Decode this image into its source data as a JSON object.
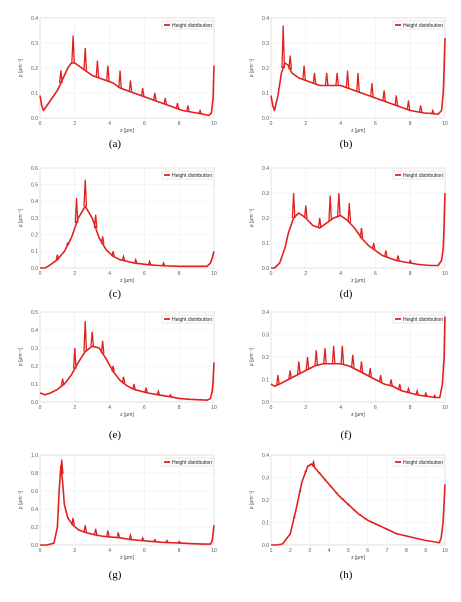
{
  "figure": {
    "panels": [
      {
        "caption": "(a)"
      },
      {
        "caption": "(b)"
      },
      {
        "caption": "(c)"
      },
      {
        "caption": "(d)"
      },
      {
        "caption": "(e)"
      },
      {
        "caption": "(f)"
      },
      {
        "caption": "(g)"
      },
      {
        "caption": "(h)"
      }
    ]
  },
  "chart_data": [
    {
      "type": "line",
      "xlabel": "z [μm]",
      "ylabel": "ρ [μm⁻¹]",
      "xlim": [
        0,
        10
      ],
      "ylim": [
        0,
        0.4
      ],
      "xticks": [
        0,
        2,
        4,
        6,
        8,
        10
      ],
      "yticks": [
        0.0,
        0.1,
        0.2,
        0.3,
        0.4
      ],
      "yticklabels": [
        "0.0",
        "0.1",
        "0.2",
        "0.3",
        "0.4"
      ],
      "grid": true,
      "legend_position": "top-right",
      "color": "#e02020",
      "series": [
        {
          "name": "Height distribution",
          "x": [
            0.0,
            0.1,
            0.2,
            0.4,
            0.6,
            0.8,
            1.0,
            1.2,
            1.4,
            1.6,
            1.8,
            2.0,
            2.2,
            2.6,
            3.0,
            3.4,
            3.8,
            4.2,
            4.6,
            5.0,
            5.4,
            5.8,
            6.2,
            6.6,
            7.0,
            7.4,
            7.8,
            8.2,
            8.6,
            9.0,
            9.4,
            9.7,
            9.85,
            9.95,
            10.0
          ],
          "y": [
            0.09,
            0.05,
            0.03,
            0.05,
            0.07,
            0.09,
            0.11,
            0.14,
            0.17,
            0.2,
            0.22,
            0.22,
            0.21,
            0.19,
            0.17,
            0.16,
            0.15,
            0.14,
            0.12,
            0.11,
            0.1,
            0.09,
            0.08,
            0.07,
            0.06,
            0.05,
            0.04,
            0.03,
            0.025,
            0.02,
            0.015,
            0.01,
            0.02,
            0.08,
            0.21
          ]
        }
      ],
      "peaks": [
        [
          1.2,
          0.19
        ],
        [
          1.9,
          0.33
        ],
        [
          2.6,
          0.28
        ],
        [
          3.3,
          0.23
        ],
        [
          3.9,
          0.21
        ],
        [
          4.6,
          0.19
        ],
        [
          5.2,
          0.15
        ],
        [
          5.9,
          0.12
        ],
        [
          6.6,
          0.1
        ],
        [
          7.2,
          0.08
        ],
        [
          7.9,
          0.06
        ],
        [
          8.5,
          0.05
        ],
        [
          9.2,
          0.03
        ]
      ]
    },
    {
      "type": "line",
      "xlabel": "z [μm]",
      "ylabel": "ρ [μm⁻¹]",
      "xlim": [
        0,
        10
      ],
      "ylim": [
        0,
        0.4
      ],
      "xticks": [
        0,
        2,
        4,
        6,
        8,
        10
      ],
      "yticks": [
        0.0,
        0.1,
        0.2,
        0.3,
        0.4
      ],
      "yticklabels": [
        "0.0",
        "0.1",
        "0.2",
        "0.3",
        "0.4"
      ],
      "grid": true,
      "legend_position": "top-right",
      "color": "#e02020",
      "series": [
        {
          "name": "Height distribution",
          "x": [
            0.0,
            0.1,
            0.2,
            0.4,
            0.6,
            0.8,
            1.0,
            1.2,
            1.6,
            2.0,
            2.4,
            2.8,
            3.2,
            3.6,
            4.0,
            4.4,
            4.8,
            5.2,
            5.6,
            6.0,
            6.4,
            6.8,
            7.2,
            7.6,
            8.0,
            8.4,
            8.8,
            9.2,
            9.6,
            9.8,
            9.9,
            9.95,
            10.0
          ],
          "y": [
            0.09,
            0.05,
            0.03,
            0.09,
            0.18,
            0.22,
            0.21,
            0.18,
            0.16,
            0.15,
            0.14,
            0.13,
            0.13,
            0.13,
            0.13,
            0.12,
            0.11,
            0.1,
            0.09,
            0.08,
            0.07,
            0.06,
            0.05,
            0.04,
            0.03,
            0.025,
            0.02,
            0.018,
            0.015,
            0.03,
            0.1,
            0.2,
            0.32
          ]
        }
      ],
      "peaks": [
        [
          0.7,
          0.37
        ],
        [
          1.1,
          0.25
        ],
        [
          1.9,
          0.21
        ],
        [
          2.5,
          0.18
        ],
        [
          3.2,
          0.18
        ],
        [
          3.8,
          0.18
        ],
        [
          4.4,
          0.19
        ],
        [
          5.0,
          0.18
        ],
        [
          5.8,
          0.14
        ],
        [
          6.5,
          0.11
        ],
        [
          7.2,
          0.09
        ],
        [
          7.9,
          0.07
        ],
        [
          8.6,
          0.05
        ],
        [
          9.3,
          0.03
        ]
      ]
    },
    {
      "type": "line",
      "xlabel": "z [μm]",
      "ylabel": "ρ [μm⁻¹]",
      "xlim": [
        0,
        10
      ],
      "ylim": [
        0,
        0.6
      ],
      "xticks": [
        0,
        2,
        4,
        6,
        8,
        10
      ],
      "yticks": [
        0.0,
        0.1,
        0.2,
        0.3,
        0.4,
        0.5,
        0.6
      ],
      "yticklabels": [
        "0.0",
        "0.1",
        "0.2",
        "0.3",
        "0.4",
        "0.5",
        "0.6"
      ],
      "grid": true,
      "legend_position": "top-right",
      "color": "#e02020",
      "series": [
        {
          "name": "Height distribution",
          "x": [
            0.0,
            0.3,
            0.6,
            1.0,
            1.4,
            1.8,
            2.2,
            2.6,
            3.0,
            3.4,
            3.8,
            4.2,
            4.6,
            5.0,
            5.4,
            5.8,
            6.2,
            6.8,
            7.4,
            8.0,
            8.6,
            9.2,
            9.6,
            9.8,
            9.9,
            10.0
          ],
          "y": [
            0.0,
            0.0,
            0.02,
            0.05,
            0.1,
            0.18,
            0.3,
            0.37,
            0.3,
            0.18,
            0.11,
            0.07,
            0.05,
            0.04,
            0.03,
            0.025,
            0.02,
            0.015,
            0.012,
            0.01,
            0.01,
            0.01,
            0.01,
            0.03,
            0.06,
            0.1
          ]
        }
      ],
      "peaks": [
        [
          1.0,
          0.08
        ],
        [
          1.6,
          0.15
        ],
        [
          2.1,
          0.42
        ],
        [
          2.6,
          0.53
        ],
        [
          3.2,
          0.32
        ],
        [
          3.6,
          0.19
        ],
        [
          4.2,
          0.1
        ],
        [
          4.8,
          0.07
        ],
        [
          5.5,
          0.05
        ],
        [
          6.3,
          0.04
        ],
        [
          7.1,
          0.03
        ]
      ]
    },
    {
      "type": "line",
      "xlabel": "z [μm]",
      "ylabel": "ρ [μm⁻¹]",
      "xlim": [
        0,
        10
      ],
      "ylim": [
        0,
        0.4
      ],
      "xticks": [
        0,
        2,
        4,
        6,
        8,
        10
      ],
      "yticks": [
        0.0,
        0.1,
        0.2,
        0.3,
        0.4
      ],
      "yticklabels": [
        "0.0",
        "0.1",
        "0.2",
        "0.3",
        "0.4"
      ],
      "grid": true,
      "legend_position": "top-right",
      "color": "#e02020",
      "series": [
        {
          "name": "Height distribution",
          "x": [
            0.0,
            0.2,
            0.5,
            0.8,
            1.0,
            1.3,
            1.6,
            2.0,
            2.4,
            2.8,
            3.2,
            3.6,
            4.0,
            4.4,
            4.8,
            5.2,
            5.6,
            6.0,
            6.4,
            6.8,
            7.2,
            7.6,
            8.0,
            8.4,
            8.8,
            9.2,
            9.6,
            9.8,
            9.9,
            9.95,
            10.0
          ],
          "y": [
            0.0,
            0.0,
            0.02,
            0.08,
            0.14,
            0.2,
            0.22,
            0.2,
            0.17,
            0.16,
            0.18,
            0.2,
            0.21,
            0.19,
            0.16,
            0.12,
            0.09,
            0.07,
            0.05,
            0.04,
            0.03,
            0.025,
            0.02,
            0.015,
            0.012,
            0.01,
            0.01,
            0.03,
            0.08,
            0.18,
            0.3
          ]
        }
      ],
      "peaks": [
        [
          1.3,
          0.3
        ],
        [
          2.0,
          0.25
        ],
        [
          2.8,
          0.2
        ],
        [
          3.4,
          0.29
        ],
        [
          3.9,
          0.3
        ],
        [
          4.5,
          0.26
        ],
        [
          5.2,
          0.16
        ],
        [
          5.9,
          0.1
        ],
        [
          6.6,
          0.07
        ],
        [
          7.3,
          0.05
        ],
        [
          8.0,
          0.03
        ]
      ]
    },
    {
      "type": "line",
      "xlabel": "z [μm]",
      "ylabel": "ρ [μm⁻¹]",
      "xlim": [
        0,
        10
      ],
      "ylim": [
        0,
        0.5
      ],
      "xticks": [
        0,
        2,
        4,
        6,
        8,
        10
      ],
      "yticks": [
        0.0,
        0.1,
        0.2,
        0.3,
        0.4,
        0.5
      ],
      "yticklabels": [
        "0.0",
        "0.1",
        "0.2",
        "0.3",
        "0.4",
        "0.5"
      ],
      "grid": true,
      "legend_position": "top-right",
      "color": "#e02020",
      "series": [
        {
          "name": "Height distribution",
          "x": [
            0.0,
            0.3,
            0.6,
            1.0,
            1.4,
            1.8,
            2.2,
            2.6,
            3.0,
            3.4,
            3.8,
            4.2,
            4.6,
            5.0,
            5.4,
            5.8,
            6.2,
            6.8,
            7.4,
            8.0,
            8.6,
            9.2,
            9.6,
            9.8,
            9.9,
            9.95,
            10.0
          ],
          "y": [
            0.05,
            0.04,
            0.05,
            0.07,
            0.1,
            0.15,
            0.22,
            0.28,
            0.31,
            0.3,
            0.24,
            0.17,
            0.12,
            0.09,
            0.07,
            0.06,
            0.05,
            0.04,
            0.03,
            0.02,
            0.015,
            0.012,
            0.01,
            0.02,
            0.06,
            0.12,
            0.22
          ]
        }
      ],
      "peaks": [
        [
          1.3,
          0.13
        ],
        [
          2.0,
          0.3
        ],
        [
          2.6,
          0.45
        ],
        [
          3.0,
          0.39
        ],
        [
          3.6,
          0.34
        ],
        [
          4.2,
          0.2
        ],
        [
          4.8,
          0.14
        ],
        [
          5.4,
          0.1
        ],
        [
          6.1,
          0.08
        ],
        [
          6.8,
          0.06
        ],
        [
          7.5,
          0.04
        ]
      ]
    },
    {
      "type": "line",
      "xlabel": "z [μm]",
      "ylabel": "ρ [μm⁻¹]",
      "xlim": [
        0,
        10
      ],
      "ylim": [
        0,
        0.4
      ],
      "xticks": [
        0,
        2,
        4,
        6,
        8,
        10
      ],
      "yticks": [
        0.0,
        0.1,
        0.2,
        0.3,
        0.4
      ],
      "yticklabels": [
        "0.0",
        "0.1",
        "0.2",
        "0.3",
        "0.4"
      ],
      "grid": true,
      "legend_position": "top-right",
      "color": "#e02020",
      "series": [
        {
          "name": "Height distribution",
          "x": [
            0.0,
            0.2,
            0.5,
            1.0,
            1.5,
            2.0,
            2.5,
            3.0,
            3.5,
            4.0,
            4.5,
            5.0,
            5.5,
            6.0,
            6.5,
            7.0,
            7.5,
            8.0,
            8.5,
            9.0,
            9.4,
            9.7,
            9.85,
            9.95,
            10.0
          ],
          "y": [
            0.08,
            0.07,
            0.08,
            0.1,
            0.12,
            0.14,
            0.16,
            0.17,
            0.17,
            0.17,
            0.16,
            0.14,
            0.12,
            0.1,
            0.08,
            0.07,
            0.05,
            0.04,
            0.03,
            0.025,
            0.02,
            0.02,
            0.08,
            0.2,
            0.38
          ]
        }
      ],
      "peaks": [
        [
          0.4,
          0.12
        ],
        [
          1.1,
          0.14
        ],
        [
          1.6,
          0.18
        ],
        [
          2.1,
          0.2
        ],
        [
          2.6,
          0.23
        ],
        [
          3.1,
          0.24
        ],
        [
          3.6,
          0.25
        ],
        [
          4.1,
          0.25
        ],
        [
          4.7,
          0.21
        ],
        [
          5.2,
          0.18
        ],
        [
          5.7,
          0.15
        ],
        [
          6.3,
          0.12
        ],
        [
          6.9,
          0.1
        ],
        [
          7.4,
          0.08
        ],
        [
          7.9,
          0.06
        ],
        [
          8.4,
          0.05
        ],
        [
          8.9,
          0.04
        ],
        [
          9.4,
          0.03
        ]
      ]
    },
    {
      "type": "line",
      "xlabel": "z [μm]",
      "ylabel": "ρ [μm⁻¹]",
      "xlim": [
        0,
        10
      ],
      "ylim": [
        0,
        1.0
      ],
      "xticks": [
        0,
        2,
        4,
        6,
        8,
        10
      ],
      "yticks": [
        0.0,
        0.2,
        0.4,
        0.6,
        0.8,
        1.0
      ],
      "yticklabels": [
        "0.0",
        "0.2",
        "0.4",
        "0.6",
        "0.8",
        "1.0"
      ],
      "grid": true,
      "legend_position": "top-right",
      "color": "#e02020",
      "series": [
        {
          "name": "Height distribution",
          "x": [
            0.0,
            0.4,
            0.8,
            1.0,
            1.1,
            1.2,
            1.3,
            1.4,
            1.6,
            1.9,
            2.2,
            2.6,
            3.0,
            3.5,
            4.0,
            4.6,
            5.2,
            5.8,
            6.4,
            7.0,
            7.6,
            8.2,
            8.8,
            9.4,
            9.8,
            9.9,
            10.0
          ],
          "y": [
            0.0,
            0.0,
            0.02,
            0.2,
            0.6,
            0.88,
            0.7,
            0.45,
            0.3,
            0.22,
            0.17,
            0.14,
            0.12,
            0.1,
            0.09,
            0.08,
            0.06,
            0.05,
            0.04,
            0.03,
            0.025,
            0.02,
            0.015,
            0.01,
            0.01,
            0.05,
            0.22
          ]
        }
      ],
      "peaks": [
        [
          1.25,
          0.95
        ],
        [
          1.9,
          0.3
        ],
        [
          2.6,
          0.22
        ],
        [
          3.2,
          0.18
        ],
        [
          3.9,
          0.16
        ],
        [
          4.5,
          0.14
        ],
        [
          5.2,
          0.11
        ],
        [
          5.9,
          0.08
        ],
        [
          6.6,
          0.06
        ],
        [
          7.3,
          0.05
        ],
        [
          8.0,
          0.04
        ]
      ]
    },
    {
      "type": "line",
      "xlabel": "z [μm]",
      "ylabel": "ρ [μm⁻¹]",
      "xlim": [
        1,
        10
      ],
      "ylim": [
        0,
        0.4
      ],
      "xticks": [
        1,
        2,
        3,
        4,
        5,
        6,
        7,
        8,
        9,
        10
      ],
      "yticks": [
        0.0,
        0.1,
        0.2,
        0.3,
        0.4
      ],
      "yticklabels": [
        "0.0",
        "0.1",
        "0.2",
        "0.3",
        "0.4"
      ],
      "grid": true,
      "legend_position": "top-right",
      "color": "#e02020",
      "series": [
        {
          "name": "Height distribution",
          "x": [
            1.0,
            1.3,
            1.6,
            2.0,
            2.3,
            2.6,
            2.9,
            3.1,
            3.3,
            3.6,
            4.0,
            4.5,
            5.0,
            5.5,
            6.0,
            6.5,
            7.0,
            7.5,
            8.0,
            8.5,
            9.0,
            9.4,
            9.7,
            9.8,
            9.9,
            10.0
          ],
          "y": [
            0.0,
            0.0,
            0.005,
            0.05,
            0.16,
            0.28,
            0.35,
            0.36,
            0.34,
            0.31,
            0.27,
            0.22,
            0.18,
            0.14,
            0.11,
            0.09,
            0.07,
            0.05,
            0.04,
            0.03,
            0.02,
            0.015,
            0.01,
            0.03,
            0.1,
            0.27
          ]
        }
      ],
      "peaks": [
        [
          2.2,
          0.07
        ],
        [
          2.5,
          0.22
        ],
        [
          2.8,
          0.3
        ],
        [
          3.2,
          0.37
        ],
        [
          3.5,
          0.32
        ],
        [
          3.8,
          0.26
        ],
        [
          4.1,
          0.2
        ],
        [
          4.4,
          0.16
        ],
        [
          4.7,
          0.13
        ],
        [
          5.0,
          0.11
        ],
        [
          5.3,
          0.09
        ],
        [
          5.6,
          0.07
        ],
        [
          5.9,
          0.06
        ],
        [
          6.2,
          0.05
        ],
        [
          6.6,
          0.04
        ],
        [
          7.0,
          0.03
        ],
        [
          7.5,
          0.03
        ],
        [
          8.0,
          0.02
        ]
      ]
    }
  ]
}
